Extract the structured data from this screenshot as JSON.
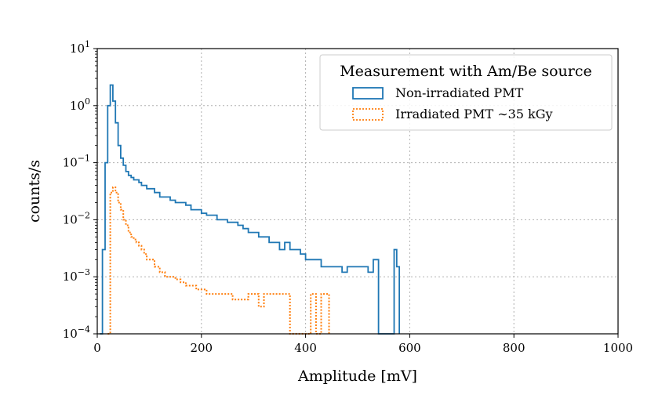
{
  "chart_data": {
    "type": "line",
    "title": "",
    "xlabel": "Amplitude [mV]",
    "ylabel": "counts/s",
    "xlim": [
      0,
      1000
    ],
    "ylim": [
      0.0001,
      10
    ],
    "yscale": "log",
    "grid": true,
    "x_ticks": [
      0,
      200,
      400,
      600,
      800,
      1000
    ],
    "x_tick_labels": [
      "0",
      "200",
      "400",
      "600",
      "800",
      "1000"
    ],
    "y_ticks": [
      0.0001,
      0.001,
      0.01,
      0.1,
      1,
      10
    ],
    "y_tick_labels": [
      {
        "base": "10",
        "exp": "−4"
      },
      {
        "base": "10",
        "exp": "−3"
      },
      {
        "base": "10",
        "exp": "−2"
      },
      {
        "base": "10",
        "exp": "−1"
      },
      {
        "base": "10",
        "exp": "0"
      },
      {
        "base": "10",
        "exp": "1"
      }
    ],
    "legend": {
      "title": "Measurement with Am/Be source",
      "location": "top-right"
    },
    "series": [
      {
        "name": "Non-irradiated PMT",
        "color": "#1f77b4",
        "style": "solid",
        "x": [
          5,
          10,
          15,
          20,
          25,
          30,
          35,
          40,
          45,
          50,
          55,
          60,
          65,
          70,
          75,
          80,
          85,
          90,
          95,
          100,
          110,
          120,
          130,
          140,
          150,
          160,
          170,
          180,
          190,
          200,
          210,
          220,
          230,
          240,
          250,
          260,
          270,
          280,
          290,
          300,
          310,
          320,
          330,
          340,
          350,
          360,
          370,
          380,
          390,
          400,
          410,
          420,
          430,
          440,
          450,
          460,
          470,
          480,
          490,
          500,
          510,
          520,
          530,
          540,
          550,
          560,
          570,
          575
        ],
        "values": [
          0.0001,
          0.003,
          0.1,
          1.0,
          2.3,
          1.2,
          0.5,
          0.2,
          0.12,
          0.09,
          0.07,
          0.06,
          0.055,
          0.05,
          0.05,
          0.045,
          0.04,
          0.04,
          0.035,
          0.035,
          0.03,
          0.025,
          0.025,
          0.022,
          0.02,
          0.02,
          0.018,
          0.015,
          0.015,
          0.013,
          0.012,
          0.012,
          0.01,
          0.01,
          0.009,
          0.009,
          0.008,
          0.007,
          0.006,
          0.006,
          0.005,
          0.005,
          0.004,
          0.004,
          0.003,
          0.004,
          0.003,
          0.003,
          0.0025,
          0.002,
          0.002,
          0.002,
          0.0015,
          0.0015,
          0.0015,
          0.0015,
          0.0012,
          0.0015,
          0.0015,
          0.0015,
          0.0015,
          0.0012,
          0.002,
          0.0001,
          0.0001,
          0.0001,
          0.003,
          0.0015
        ]
      },
      {
        "name": "Irradiated PMT ∼35 kGy",
        "color": "#ff7f0e",
        "style": "dotted",
        "x": [
          20,
          25,
          30,
          35,
          40,
          45,
          50,
          55,
          60,
          65,
          70,
          75,
          80,
          85,
          90,
          95,
          100,
          110,
          120,
          130,
          140,
          150,
          160,
          170,
          180,
          190,
          200,
          210,
          220,
          230,
          240,
          250,
          260,
          270,
          280,
          290,
          300,
          310,
          320,
          330,
          340,
          350,
          360,
          370,
          380,
          390,
          400,
          410,
          420,
          430,
          440
        ],
        "values": [
          0.0001,
          0.03,
          0.037,
          0.03,
          0.02,
          0.015,
          0.01,
          0.008,
          0.006,
          0.005,
          0.0045,
          0.004,
          0.0035,
          0.003,
          0.0025,
          0.002,
          0.002,
          0.0015,
          0.0012,
          0.001,
          0.001,
          0.0009,
          0.0008,
          0.0007,
          0.0007,
          0.0006,
          0.0006,
          0.0005,
          0.0005,
          0.0005,
          0.0005,
          0.0005,
          0.0004,
          0.0004,
          0.0004,
          0.0005,
          0.0005,
          0.0003,
          0.0005,
          0.0005,
          0.0005,
          0.0005,
          0.0005,
          0.0001,
          0.0001,
          0.0001,
          0.0001,
          0.0005,
          0.0001,
          0.0005,
          0.0005
        ]
      }
    ]
  }
}
